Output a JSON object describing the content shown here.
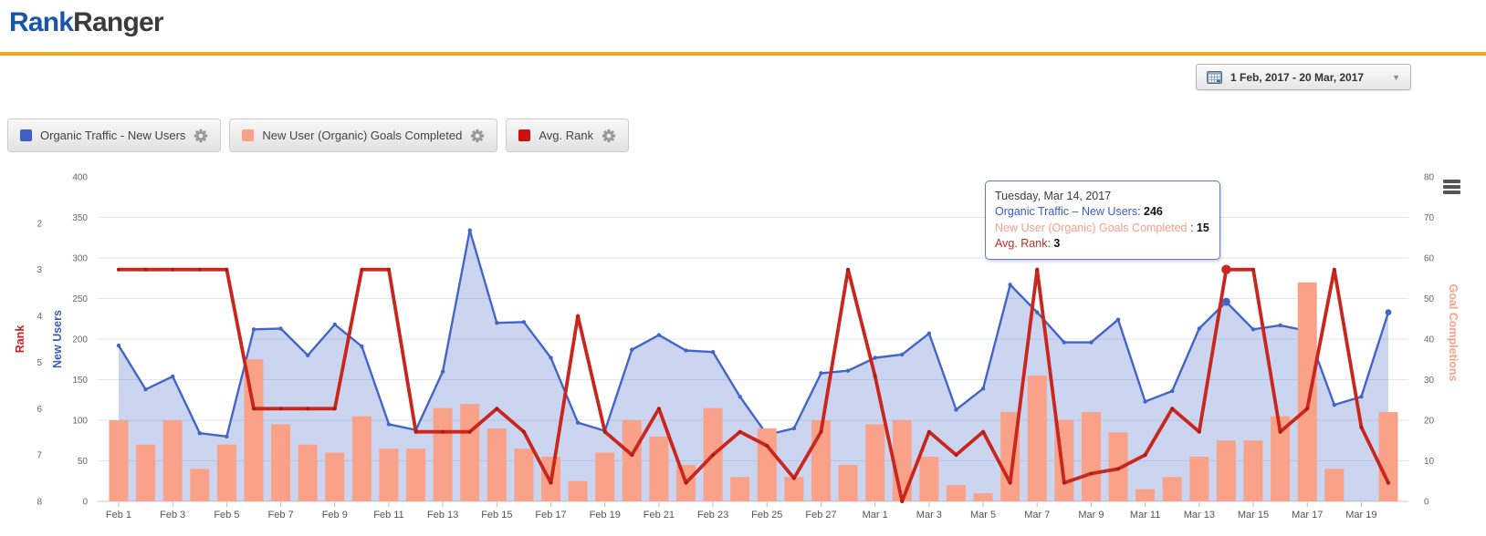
{
  "header": {
    "logo_part1": "Rank",
    "logo_part2": "Ranger",
    "logo_color1": "#1A56A8",
    "logo_color2": "#3B3B3B",
    "divider_color": "#F0A818"
  },
  "toolbar": {
    "date_range": "1 Feb, 2017 - 20 Mar, 2017"
  },
  "legend": {
    "items": [
      {
        "label": "Organic Traffic - New Users",
        "color": "#4060C8"
      },
      {
        "label": "New User (Organic) Goals Completed",
        "color": "#F9A189"
      },
      {
        "label": "Avg. Rank",
        "color": "#CC1111"
      }
    ]
  },
  "tooltip": {
    "date": "Tuesday, Mar 14, 2017",
    "rows": [
      {
        "label": "Organic Traffic – New Users",
        "sep": ": ",
        "value": "246",
        "color": "#3A5BC5"
      },
      {
        "label": "New User (Organic) Goals Completed",
        "sep": " : ",
        "value": "15",
        "color": "#F79E88"
      },
      {
        "label": "Avg. Rank",
        "sep": ": ",
        "value": "3",
        "color": "#BE2E24"
      }
    ]
  },
  "chart_data": {
    "type": "combo",
    "categories": [
      "Feb 1",
      "Feb 2",
      "Feb 3",
      "Feb 4",
      "Feb 5",
      "Feb 6",
      "Feb 7",
      "Feb 8",
      "Feb 9",
      "Feb 10",
      "Feb 11",
      "Feb 12",
      "Feb 13",
      "Feb 14",
      "Feb 15",
      "Feb 16",
      "Feb 17",
      "Feb 18",
      "Feb 19",
      "Feb 20",
      "Feb 21",
      "Feb 22",
      "Feb 23",
      "Feb 24",
      "Feb 25",
      "Feb 26",
      "Feb 27",
      "Feb 28",
      "Mar 1",
      "Mar 2",
      "Mar 3",
      "Mar 4",
      "Mar 5",
      "Mar 6",
      "Mar 7",
      "Mar 8",
      "Mar 9",
      "Mar 10",
      "Mar 11",
      "Mar 12",
      "Mar 13",
      "Mar 14",
      "Mar 15",
      "Mar 16",
      "Mar 17",
      "Mar 18",
      "Mar 19",
      "Mar 20"
    ],
    "x_label_interval": 2,
    "series": [
      {
        "name": "Organic Traffic - New Users",
        "type": "area",
        "axis": "users",
        "color": "#4365C8",
        "fill": "rgba(67,101,200,0.27)",
        "values": [
          192,
          138,
          154,
          84,
          80,
          212,
          213,
          180,
          218,
          191,
          95,
          88,
          160,
          334,
          220,
          221,
          177,
          97,
          87,
          187,
          205,
          186,
          184,
          129,
          82,
          90,
          158,
          161,
          177,
          181,
          207,
          113,
          139,
          267,
          233,
          196,
          196,
          224,
          123,
          136,
          213,
          246,
          212,
          217,
          210,
          119,
          129,
          233
        ]
      },
      {
        "name": "New User (Organic) Goals Completed",
        "type": "bar",
        "axis": "goals",
        "color": "#F9A189",
        "values": [
          20,
          14,
          20,
          8,
          14,
          35,
          19,
          14,
          12,
          21,
          13,
          13,
          23,
          24,
          18,
          13,
          11,
          5,
          12,
          20,
          16,
          9,
          23,
          6,
          18,
          6,
          20,
          9,
          19,
          20,
          11,
          4,
          2,
          22,
          31,
          20,
          22,
          17,
          3,
          6,
          11,
          15,
          15,
          21,
          54,
          8,
          0,
          22
        ]
      },
      {
        "name": "Avg. Rank",
        "type": "line",
        "axis": "rank",
        "color": "#C9261E",
        "dot_color": "#A81D15",
        "values": [
          3,
          3,
          3,
          3,
          3,
          6,
          6,
          6,
          6,
          3,
          3,
          6.5,
          6.5,
          6.5,
          6,
          6.5,
          7.6,
          4,
          6.5,
          7,
          6,
          7.6,
          7,
          6.5,
          6.8,
          7.5,
          6.5,
          3,
          5.3,
          8,
          6.5,
          7,
          6.5,
          7.6,
          3,
          7.6,
          7.4,
          7.3,
          7,
          6,
          6.5,
          3,
          3,
          6.5,
          6,
          3,
          6.4,
          7.6
        ]
      }
    ],
    "axes": {
      "users": {
        "label": "New Users",
        "min": 0,
        "max": 400,
        "ticks": [
          0,
          50,
          100,
          150,
          200,
          250,
          300,
          350,
          400
        ],
        "label_color": "#3A5BC0",
        "tick_color": "#666666"
      },
      "rank": {
        "label": "Rank",
        "min": 1,
        "max": 8,
        "inverted": true,
        "ticks": [
          2,
          3,
          4,
          5,
          6,
          7,
          8
        ],
        "label_color": "#CC2222",
        "tick_color": "#666666"
      },
      "goals": {
        "label": "Goal Completions",
        "min": 0,
        "max": 80,
        "ticks": [
          0,
          10,
          20,
          30,
          40,
          50,
          60,
          70,
          80
        ],
        "label_color": "#F9A189",
        "tick_color": "#666666"
      }
    },
    "grid": {
      "on": true,
      "color": "#E2E6F0",
      "baseline_color": "#CCCCCC",
      "x_tick_color": "#BBBBBB",
      "x_label_color": "#555555"
    },
    "highlight": {
      "index": 41,
      "category": "Mar 14"
    },
    "title": "",
    "legend_position": "top-left"
  }
}
